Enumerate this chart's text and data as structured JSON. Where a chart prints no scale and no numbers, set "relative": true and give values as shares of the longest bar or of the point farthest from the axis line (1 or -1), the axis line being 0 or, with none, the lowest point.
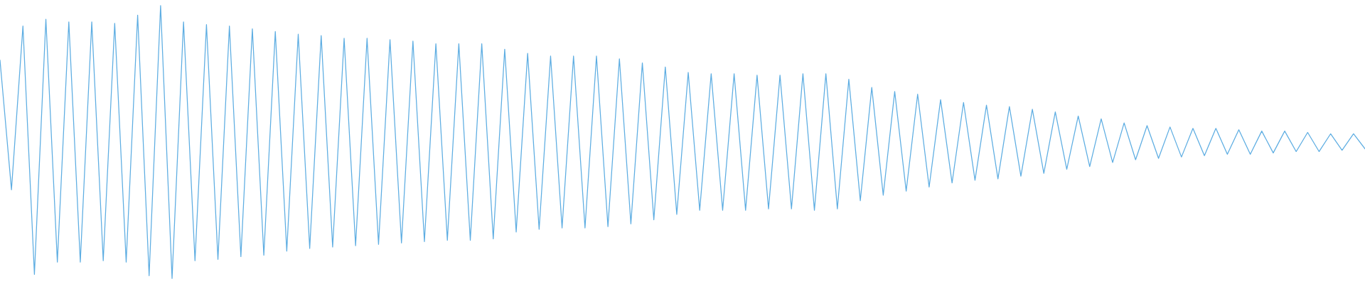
{
  "chart_data": {
    "type": "line",
    "relative": true,
    "legend": false,
    "marker": "none",
    "line_style": "solid",
    "categories": [
      null,
      null,
      null,
      null,
      null,
      null,
      null,
      null,
      null,
      null,
      null,
      null,
      null,
      null,
      null,
      null,
      null,
      null,
      null,
      null,
      null,
      null,
      null,
      null,
      null,
      null,
      null,
      null,
      null,
      null,
      null,
      null,
      null,
      null,
      null,
      null,
      null,
      null,
      null,
      null,
      null,
      null,
      null,
      null,
      null,
      null,
      null,
      null,
      null,
      null,
      null,
      null,
      null,
      null,
      null,
      null,
      null,
      null,
      null,
      null,
      null,
      null,
      null,
      null,
      null,
      null,
      null,
      null,
      null,
      null,
      null,
      null,
      null,
      null,
      null,
      null,
      null,
      null,
      null,
      null,
      null,
      null,
      null,
      null,
      null,
      null,
      null,
      null,
      null,
      null,
      null,
      null,
      null,
      null,
      null,
      null,
      null,
      null,
      null,
      null,
      null,
      null,
      null,
      null,
      null,
      null,
      null,
      null,
      null,
      null,
      null,
      null,
      null,
      null,
      null,
      null,
      null,
      null,
      null,
      null
    ],
    "series": [
      {
        "color": "#5dade2",
        "values": [
          0.8,
          0.325,
          0.925,
          0.015,
          0.95,
          0.06,
          0.94,
          0.06,
          0.94,
          0.065,
          0.935,
          0.06,
          0.965,
          0.01,
          1.0,
          0.0,
          0.94,
          0.065,
          0.93,
          0.07,
          0.925,
          0.08,
          0.915,
          0.085,
          0.905,
          0.1,
          0.895,
          0.11,
          0.89,
          0.115,
          0.88,
          0.12,
          0.88,
          0.125,
          0.875,
          0.13,
          0.87,
          0.135,
          0.86,
          0.14,
          0.86,
          0.14,
          0.86,
          0.145,
          0.84,
          0.17,
          0.825,
          0.18,
          0.815,
          0.185,
          0.815,
          0.185,
          0.815,
          0.19,
          0.805,
          0.2,
          0.79,
          0.215,
          0.775,
          0.235,
          0.755,
          0.25,
          0.75,
          0.25,
          0.75,
          0.25,
          0.745,
          0.255,
          0.745,
          0.255,
          0.75,
          0.25,
          0.75,
          0.255,
          0.73,
          0.285,
          0.7,
          0.305,
          0.685,
          0.32,
          0.675,
          0.335,
          0.655,
          0.35,
          0.645,
          0.36,
          0.635,
          0.365,
          0.63,
          0.375,
          0.62,
          0.385,
          0.61,
          0.4,
          0.595,
          0.41,
          0.585,
          0.425,
          0.57,
          0.435,
          0.56,
          0.44,
          0.555,
          0.445,
          0.55,
          0.45,
          0.55,
          0.455,
          0.545,
          0.455,
          0.54,
          0.46,
          0.54,
          0.465,
          0.535,
          0.465,
          0.53,
          0.47,
          0.53,
          0.475
        ]
      }
    ]
  }
}
